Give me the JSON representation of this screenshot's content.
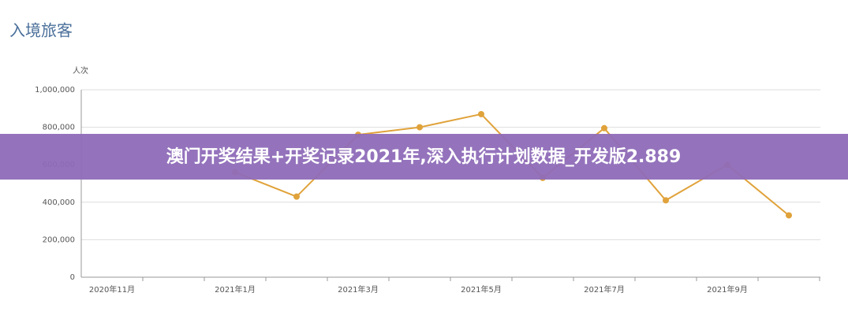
{
  "chart_data": {
    "type": "line",
    "title": "入境旅客",
    "y_label": "人次",
    "categories": [
      "2020年11月",
      null,
      "2021年1月",
      null,
      "2021年3月",
      null,
      "2021年5月",
      null,
      "2021年7月",
      null,
      "2021年9月",
      null
    ],
    "series": [
      {
        "color": "#e0a23a",
        "values": [
          null,
          null,
          560000,
          430000,
          760000,
          800000,
          870000,
          530000,
          795000,
          410000,
          600000,
          330000
        ]
      }
    ],
    "ylim": [
      0,
      1000000
    ],
    "yticks": [
      0,
      {
        "value": 200000,
        "label": "200,000"
      },
      {
        "value": 400000,
        "label": "400,000"
      },
      {
        "value": 600000,
        "label": "600,000"
      },
      {
        "value": 800000,
        "label": "800,000"
      },
      {
        "value": 1000000,
        "label": "1,000,000"
      }
    ],
    "grid": true
  },
  "overlay_banner": "澳门开奖结果+开奖记录2021年,深入执行计划数据_开发版2.889"
}
